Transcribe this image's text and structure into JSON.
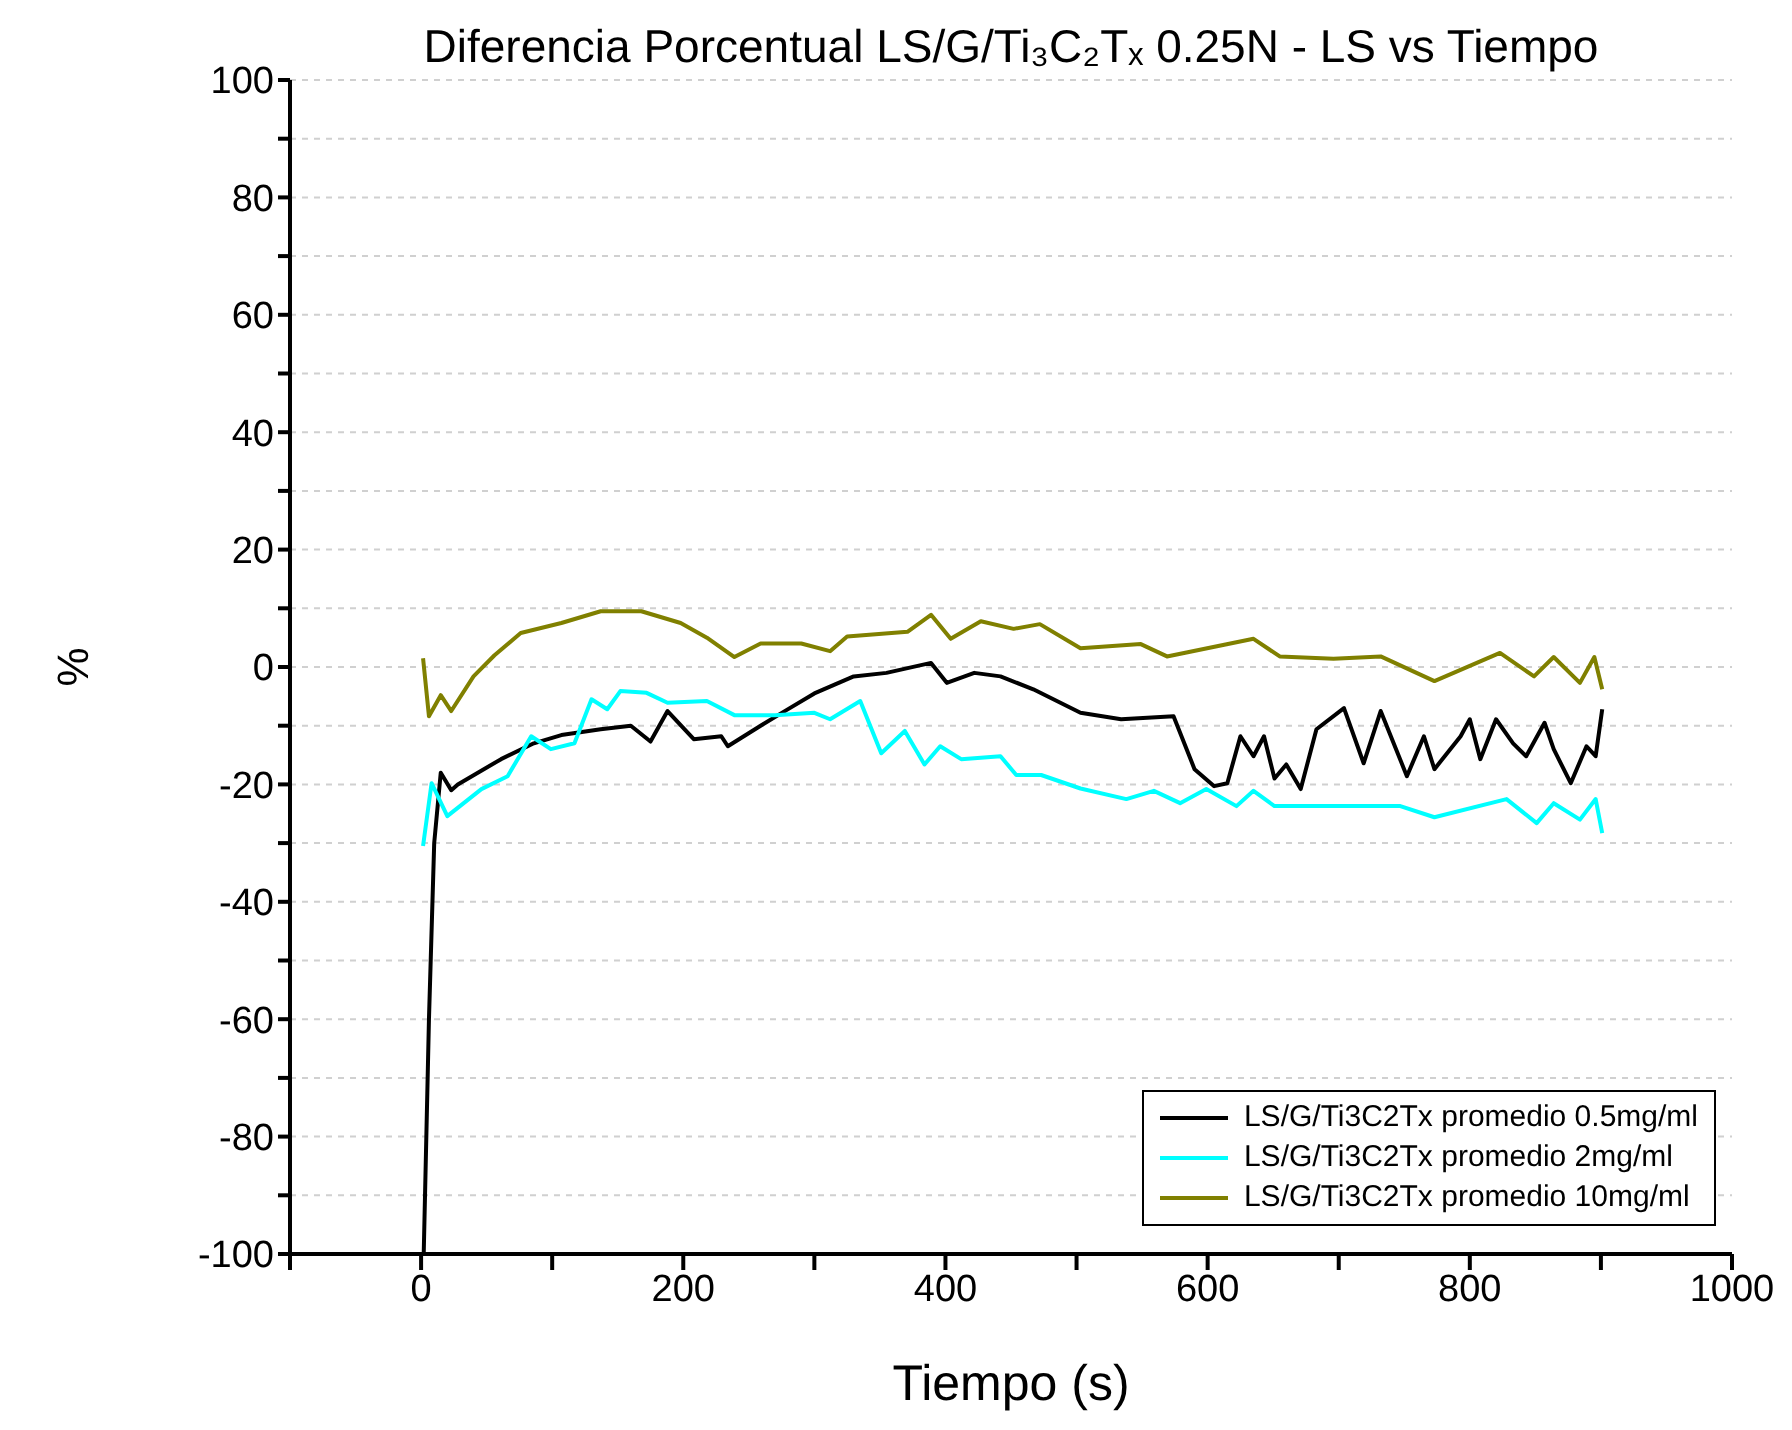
{
  "chart_data": {
    "type": "line",
    "title": "Diferencia Porcentual LS/G/Ti₃C₂Tₓ 0.25N - LS vs Tiempo",
    "xlabel": "Tiempo (s)",
    "ylabel": "%",
    "xlim": [
      -100,
      1000
    ],
    "xticks": [
      {
        "value": -100,
        "label": null
      },
      0,
      {
        "value": 100,
        "label": null
      },
      200,
      {
        "value": 300,
        "label": null
      },
      400,
      {
        "value": 500,
        "label": null
      },
      600,
      {
        "value": 700,
        "label": null
      },
      800,
      {
        "value": 900,
        "label": null
      },
      1000
    ],
    "ylim": [
      -100,
      100
    ],
    "yticks": [
      -100,
      {
        "value": -90,
        "label": null
      },
      -80,
      {
        "value": -70,
        "label": null
      },
      -60,
      {
        "value": -50,
        "label": null
      },
      -40,
      {
        "value": -30,
        "label": null
      },
      -20,
      {
        "value": -10,
        "label": null
      },
      0,
      {
        "value": 10,
        "label": null
      },
      20,
      {
        "value": 30,
        "label": null
      },
      40,
      {
        "value": 50,
        "label": null
      },
      60,
      {
        "value": 70,
        "label": null
      },
      80,
      {
        "value": 90,
        "label": null
      },
      100
    ],
    "grid": "y",
    "legend": "bottom right",
    "marker": "none",
    "line_style": "solid",
    "series": [
      {
        "name": "LS/G/Ti3C2Tx promedio 0.5mg/ml",
        "color": "#000000",
        "x": [
          2,
          6,
          10,
          15,
          23,
          28,
          61,
          86,
          107,
          137,
          160,
          175,
          188,
          208,
          229,
          234,
          259,
          279,
          300,
          330,
          355,
          389,
          401,
          422,
          442,
          467,
          503,
          534,
          574,
          590,
          605,
          615,
          625,
          635,
          643,
          651,
          660,
          671,
          683,
          704,
          719,
          732,
          752,
          765,
          773,
          793,
          800,
          808,
          820,
          833,
          843,
          857,
          864,
          877,
          889,
          896,
          901
        ],
        "values": [
          -100,
          -60,
          -30,
          -18,
          -21,
          -20,
          -15.7,
          -13,
          -11.6,
          -10.6,
          -10,
          -12.7,
          -7.5,
          -12.3,
          -11.8,
          -13.5,
          -10,
          -7.3,
          -4.5,
          -1.6,
          -1,
          0.7,
          -2.7,
          -1,
          -1.6,
          -3.8,
          -7.8,
          -8.9,
          -8.4,
          -17.4,
          -20.3,
          -19.8,
          -11.8,
          -15.2,
          -11.8,
          -19,
          -16.6,
          -20.8,
          -10.6,
          -7,
          -16.4,
          -7.5,
          -18.6,
          -11.8,
          -17.4,
          -11.8,
          -8.9,
          -15.7,
          -8.9,
          -13,
          -15.2,
          -9.5,
          -14,
          -19.8,
          -13.5,
          -15.2,
          -7.2
        ]
      },
      {
        "name": "LS/G/Ti3C2Tx promedio 2mg/ml",
        "color": "#00ffff",
        "x": [
          1.5,
          8,
          20,
          46,
          66,
          84,
          99,
          117,
          130,
          142,
          152,
          172,
          188,
          218,
          239,
          270,
          300,
          312,
          335,
          351,
          369,
          384,
          396,
          412,
          442,
          454,
          473,
          503,
          538,
          559,
          579,
          599,
          622,
          635,
          651,
          696,
          747,
          773,
          828,
          851,
          864,
          884,
          896,
          901
        ],
        "values": [
          -30.5,
          -19.8,
          -25.4,
          -20.8,
          -18.6,
          -11.8,
          -14,
          -13,
          -5.5,
          -7.2,
          -4.1,
          -4.4,
          -6.1,
          -5.8,
          -8.2,
          -8.2,
          -7.8,
          -8.9,
          -5.8,
          -14.7,
          -10.9,
          -16.6,
          -13.5,
          -15.7,
          -15.2,
          -18.4,
          -18.4,
          -20.7,
          -22.5,
          -21.1,
          -23.2,
          -20.8,
          -23.7,
          -21.1,
          -23.7,
          -23.7,
          -23.7,
          -25.6,
          -22.5,
          -26.6,
          -23.2,
          -26,
          -22.5,
          -28.3
        ]
      },
      {
        "name": "LS/G/Ti3C2Tx promedio 10mg/ml",
        "color": "#808000",
        "x": [
          1.5,
          6,
          15,
          23,
          40,
          56,
          76,
          107,
          137,
          168,
          198,
          218,
          239,
          259,
          290,
          312,
          325,
          371,
          389,
          404,
          427,
          452,
          472,
          503,
          549,
          569,
          635,
          655,
          696,
          732,
          773,
          823,
          849,
          864,
          884,
          895,
          901
        ],
        "values": [
          1.5,
          -8.4,
          -4.8,
          -7.5,
          -1.6,
          2,
          5.8,
          7.5,
          9.5,
          9.5,
          7.5,
          5,
          1.7,
          4,
          4,
          2.7,
          5.2,
          6,
          8.9,
          4.8,
          7.8,
          6.5,
          7.3,
          3.2,
          3.9,
          1.8,
          4.8,
          1.8,
          1.4,
          1.8,
          -2.4,
          2.4,
          -1.6,
          1.7,
          -2.7,
          1.7,
          -3.8
        ]
      }
    ]
  }
}
